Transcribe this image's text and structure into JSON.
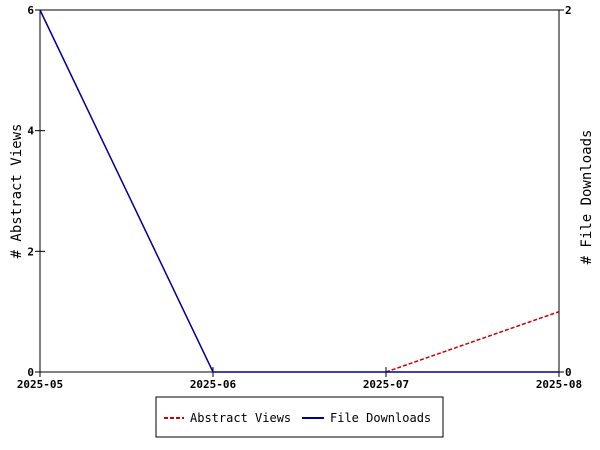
{
  "chart_data": {
    "type": "line",
    "x": [
      "2025-05",
      "2025-06",
      "2025-07",
      "2025-08"
    ],
    "series": [
      {
        "name": "Abstract Views",
        "axis": "left",
        "values": [
          null,
          null,
          0,
          1
        ],
        "color": "#cc0000",
        "dash": "dashed"
      },
      {
        "name": "File Downloads",
        "axis": "right",
        "values": [
          2,
          0,
          0,
          0
        ],
        "color": "#000099",
        "dash": "solid"
      }
    ],
    "ylabel_left": "# Abstract Views",
    "ylabel_right": "# File Downloads",
    "ylim_left": [
      0,
      6
    ],
    "ylim_right": [
      0,
      2
    ],
    "yticks_left": [
      "0",
      "2",
      "4",
      "6"
    ],
    "yticks_right": [
      "0",
      "2"
    ],
    "legend_position": "bottom-center",
    "grid": false
  }
}
